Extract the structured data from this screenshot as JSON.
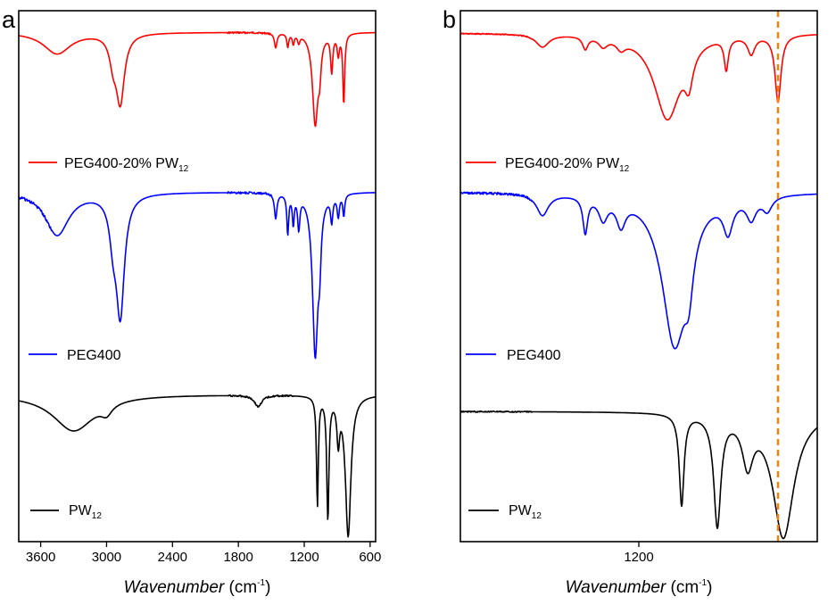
{
  "chart_data": [
    {
      "panel": "a",
      "type": "line",
      "xlabel": "Wavenumber (cm-1)",
      "xlabel_main": "Wavenumber",
      "xlabel_unit_pre": "(cm",
      "xlabel_unit_exp": "-1",
      "xlabel_unit_post": ")",
      "xlim": [
        3800,
        550
      ],
      "x_reversed": true,
      "ticks": [
        3600,
        3000,
        2400,
        1800,
        1200,
        600
      ],
      "tick_labels": [
        "3600",
        "3000",
        "2400",
        "1800",
        "1200",
        "600"
      ],
      "ylabel": "",
      "y_ticks_shown": false,
      "series": [
        {
          "name": "PEG400-20% PW12",
          "legend_main": "PEG400-20% PW",
          "legend_sub": "12",
          "color": "#ff0000",
          "baseline": 0.0,
          "peaks": [
            [
              3450,
              0.32,
              150
            ],
            [
              2875,
              1.0,
              45
            ],
            [
              2940,
              0.35,
              40
            ],
            [
              1460,
              0.22,
              14
            ],
            [
              1350,
              0.2,
              10
            ],
            [
              1300,
              0.15,
              10
            ],
            [
              1250,
              0.12,
              12
            ],
            [
              1100,
              1.35,
              30
            ],
            [
              1060,
              0.4,
              15
            ],
            [
              950,
              0.55,
              12
            ],
            [
              890,
              0.3,
              12
            ],
            [
              840,
              1.05,
              10
            ]
          ],
          "noise": [
            [
              1900,
              1500,
              0.025
            ]
          ]
        },
        {
          "name": "PEG400",
          "legend_main": "PEG400",
          "legend_sub": "",
          "color": "#0000ff",
          "baseline": 0.0,
          "peaks": [
            [
              3450,
              0.6,
              130
            ],
            [
              2875,
              1.65,
              45
            ],
            [
              2940,
              0.5,
              40
            ],
            [
              1460,
              0.35,
              14
            ],
            [
              1350,
              0.55,
              10
            ],
            [
              1300,
              0.4,
              10
            ],
            [
              1250,
              0.45,
              12
            ],
            [
              1100,
              2.25,
              30
            ],
            [
              1060,
              0.6,
              15
            ],
            [
              950,
              0.35,
              12
            ],
            [
              890,
              0.3,
              12
            ],
            [
              840,
              0.3,
              10
            ]
          ],
          "noise": [
            [
              3800,
              3500,
              0.04
            ],
            [
              1900,
              1500,
              0.03
            ]
          ]
        },
        {
          "name": "PW12",
          "legend_main": "PW",
          "legend_sub": "12",
          "color": "#000000",
          "baseline": 0.0,
          "peaks": [
            [
              3300,
              0.45,
              230
            ],
            [
              3000,
              0.12,
              60
            ],
            [
              1620,
              0.14,
              40
            ],
            [
              1080,
              1.35,
              10
            ],
            [
              985,
              1.5,
              12
            ],
            [
              890,
              0.5,
              15
            ],
            [
              800,
              1.75,
              30
            ]
          ],
          "noise": [
            [
              1900,
              1300,
              0.02
            ]
          ]
        }
      ]
    },
    {
      "panel": "b",
      "type": "line",
      "xlabel": "Wavenumber (cm-1)",
      "xlabel_main": "Wavenumber",
      "xlabel_unit_pre": "(cm",
      "xlabel_unit_exp": "-1",
      "xlabel_unit_post": ")",
      "xlim": [
        1700,
        700
      ],
      "x_reversed": true,
      "ticks": [
        1200
      ],
      "tick_labels": [
        "1200"
      ],
      "ylabel": "",
      "y_ticks_shown": false,
      "reference_line": {
        "x": 810,
        "color": "#ff7f00",
        "style": "dashed"
      },
      "series": [
        {
          "name": "PEG400-20% PW12",
          "legend_main": "PEG400-20% PW",
          "legend_sub": "12",
          "color": "#ff0000",
          "baseline": 0.0,
          "peaks": [
            [
              1470,
              0.14,
              22
            ],
            [
              1350,
              0.14,
              9
            ],
            [
              1300,
              0.1,
              15
            ],
            [
              1250,
              0.1,
              15
            ],
            [
              1120,
              0.95,
              45
            ],
            [
              1060,
              0.35,
              14
            ],
            [
              955,
              0.35,
              7
            ],
            [
              885,
              0.2,
              12
            ],
            [
              810,
              0.75,
              10
            ]
          ],
          "noise": [
            [
              1700,
              1500,
              0.012
            ]
          ]
        },
        {
          "name": "PEG400",
          "legend_main": "PEG400",
          "legend_sub": "",
          "color": "#0000ff",
          "baseline": 0.0,
          "peaks": [
            [
              1470,
              0.3,
              20
            ],
            [
              1350,
              0.5,
              8
            ],
            [
              1300,
              0.3,
              15
            ],
            [
              1250,
              0.35,
              15
            ],
            [
              1100,
              2.1,
              42
            ],
            [
              1060,
              0.65,
              15
            ],
            [
              950,
              0.45,
              16
            ],
            [
              885,
              0.3,
              16
            ],
            [
              840,
              0.2,
              16
            ]
          ],
          "noise": [
            [
              1700,
              1500,
              0.03
            ]
          ]
        },
        {
          "name": "PW12",
          "legend_main": "PW",
          "legend_sub": "12",
          "color": "#000000",
          "baseline": 0.0,
          "peaks": [
            [
              1080,
              1.2,
              8
            ],
            [
              980,
              1.45,
              12
            ],
            [
              895,
              0.6,
              18
            ],
            [
              795,
              1.65,
              36
            ]
          ],
          "noise": [
            [
              1700,
              1500,
              0.015
            ]
          ]
        }
      ]
    }
  ]
}
